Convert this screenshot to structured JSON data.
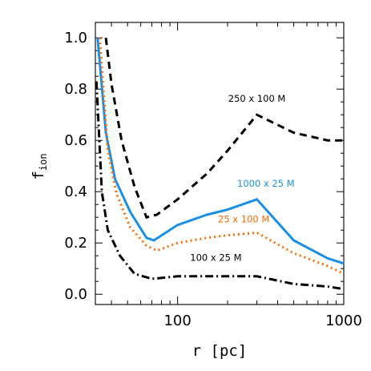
{
  "chart_data": {
    "type": "line",
    "xlabel": "r [pc]",
    "ylabel_main": "f",
    "ylabel_sub": "ion",
    "xscale": "log",
    "xlim": [
      32,
      1000
    ],
    "ylim": [
      -0.04,
      1.06
    ],
    "x_ticks": [
      {
        "value": 100,
        "label": "100"
      },
      {
        "value": 1000,
        "label": "1000"
      }
    ],
    "y_ticks": [
      {
        "value": 0.0,
        "label": "0.0"
      },
      {
        "value": 0.2,
        "label": "0.2"
      },
      {
        "value": 0.4,
        "label": "0.4"
      },
      {
        "value": 0.6,
        "label": "0.6"
      },
      {
        "value": 0.8,
        "label": "0.8"
      },
      {
        "value": 1.0,
        "label": "1.0"
      }
    ],
    "grid": false,
    "series": [
      {
        "label_main": "250 x 100 M",
        "color": "#000000",
        "dash": "9,6",
        "width": 3,
        "label_anchor": [
          300,
          0.75
        ],
        "x": [
          37,
          40,
          46,
          55,
          65,
          75,
          100,
          150,
          200,
          300,
          500,
          800,
          1000
        ],
        "y": [
          1.0,
          0.82,
          0.6,
          0.42,
          0.3,
          0.31,
          0.37,
          0.47,
          0.56,
          0.7,
          0.63,
          0.6,
          0.6
        ]
      },
      {
        "label_main": "1000 x 25 M",
        "color": "#1a8fe8",
        "dash": "",
        "width": 3,
        "label_anchor": [
          340,
          0.42
        ],
        "x": [
          33,
          37,
          42,
          52,
          65,
          72,
          100,
          150,
          200,
          300,
          500,
          800,
          1000
        ],
        "y": [
          1.0,
          0.63,
          0.45,
          0.32,
          0.22,
          0.21,
          0.27,
          0.31,
          0.33,
          0.37,
          0.21,
          0.14,
          0.12
        ]
      },
      {
        "label_main": "25 x 100 M",
        "color": "#ff6a00",
        "dash": "2,4",
        "width": 3,
        "label_anchor": [
          250,
          0.28
        ],
        "x": [
          34,
          38,
          43,
          52,
          65,
          75,
          100,
          150,
          200,
          300,
          500,
          800,
          1000
        ],
        "y": [
          1.0,
          0.56,
          0.39,
          0.26,
          0.19,
          0.17,
          0.2,
          0.22,
          0.23,
          0.24,
          0.16,
          0.11,
          0.08
        ]
      },
      {
        "label_main": "100 x 25 M",
        "color": "#000000",
        "dash": "10,4,2,4",
        "width": 3,
        "label_anchor": [
          170,
          0.13
        ],
        "x": [
          32.5,
          35,
          38,
          45,
          55,
          70,
          100,
          150,
          200,
          300,
          500,
          800,
          1000
        ],
        "y": [
          0.83,
          0.4,
          0.25,
          0.15,
          0.08,
          0.06,
          0.07,
          0.07,
          0.07,
          0.07,
          0.04,
          0.03,
          0.02
        ]
      }
    ]
  }
}
